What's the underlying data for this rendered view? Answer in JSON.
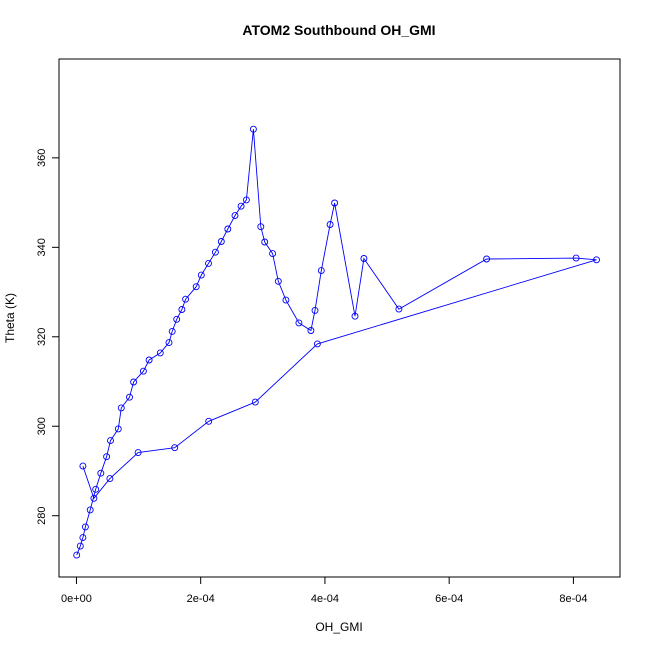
{
  "chart_data": {
    "type": "line",
    "title": "ATOM2 Southbound OH_GMI",
    "xlabel": "OH_GMI",
    "ylabel": "Theta (K)",
    "xlim": [
      -2.81e-05,
      0.000875
    ],
    "ylim": [
      266.3,
      382.1
    ],
    "x_ticks": [
      0,
      0.0002,
      0.0004,
      0.0006,
      0.0008
    ],
    "x_tick_labels": [
      "0e+00",
      "2e-04",
      "4e-04",
      "6e-04",
      "8e-04"
    ],
    "y_ticks": [
      280,
      300,
      320,
      340,
      360
    ],
    "y_tick_labels": [
      "280",
      "300",
      "320",
      "340",
      "360"
    ],
    "grid": false,
    "markers": "open-circle",
    "color": "#0000ff",
    "series": [
      {
        "x": [
          4e-07,
          6.2e-06,
          1.03e-05,
          1.44e-05,
          2.21e-05,
          3.09e-05,
          3.92e-05,
          4.85e-05,
          5.48e-05,
          6.73e-05,
          7.22e-05,
          8.54e-05,
          9.2e-05,
          0.0001077,
          0.0001169,
          0.000135,
          0.0001489,
          0.0001541,
          0.0001613,
          0.0001697,
          0.0001757,
          0.0001927,
          0.000201,
          0.0002125,
          0.0002236,
          0.0002331,
          0.0002437,
          0.0002553,
          0.000265,
          0.0002736,
          0.0002849,
          0.0002968,
          0.0003031,
          0.0003158,
          0.0003249,
          0.0003371,
          0.0003581,
          0.0003774,
          0.000384,
          0.0003941,
          0.0004083,
          0.0004155,
          0.0004484,
          0.0004627,
          0.000519,
          0.0006602,
          0.0008044,
          0.0008371,
          0.0003879,
          0.0002879,
          0.0002129,
          0.0001581,
          9.92e-05,
          5.39e-05,
          2.81e-05,
          1.04e-05
        ],
        "y": [
          271.2,
          273.2,
          275.1,
          277.5,
          281.3,
          285.9,
          289.5,
          293.2,
          296.8,
          299.4,
          304.1,
          306.5,
          309.9,
          312.3,
          314.8,
          316.4,
          318.7,
          321.2,
          323.9,
          326.1,
          328.4,
          331.2,
          333.8,
          336.4,
          338.9,
          341.3,
          344.1,
          347.1,
          349.2,
          350.6,
          366.4,
          344.6,
          341.2,
          338.6,
          332.4,
          328.2,
          323.1,
          321.4,
          325.9,
          334.8,
          345.1,
          349.9,
          324.6,
          337.5,
          326.2,
          337.4,
          337.6,
          337.2,
          318.4,
          305.4,
          301.1,
          295.2,
          294.1,
          288.3,
          283.9,
          291.1
        ]
      }
    ]
  }
}
